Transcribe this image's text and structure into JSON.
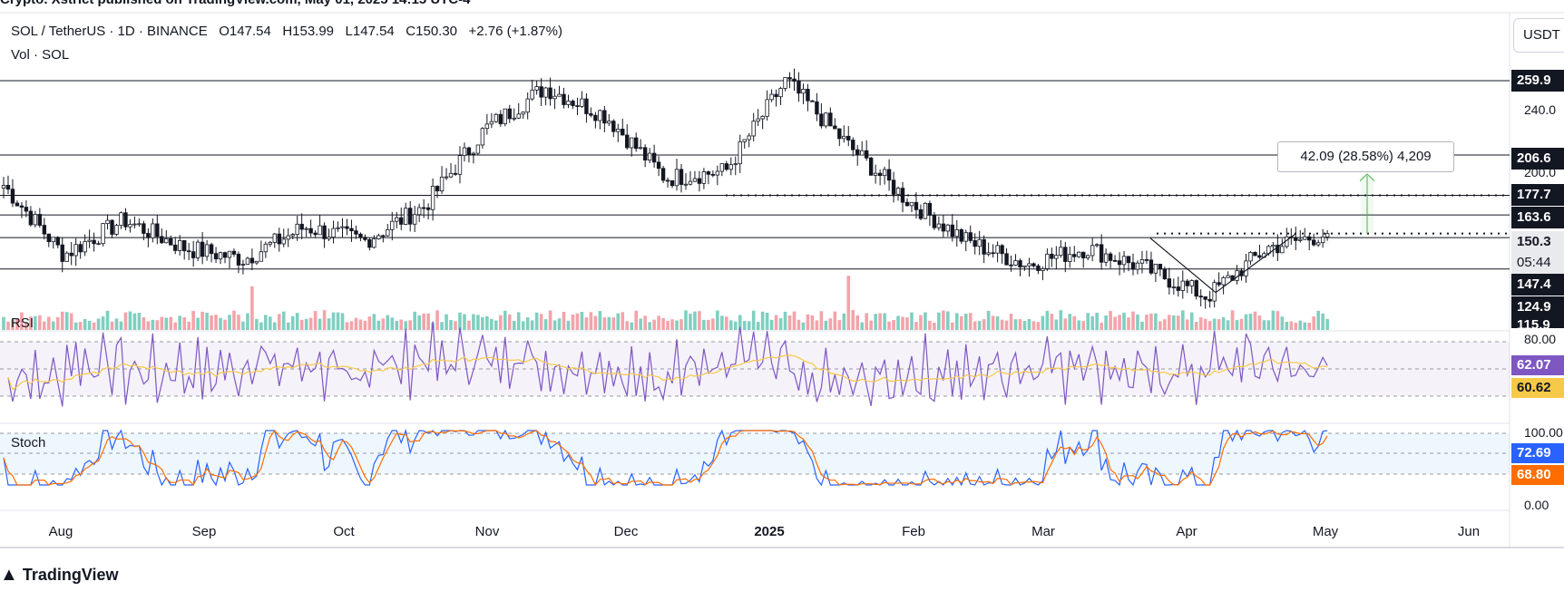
{
  "top_caption": "Crypto. Xstrict published on TradingView.com, May 01, 2025 14:15 UTC-4",
  "header": {
    "symbol": "SOL / TetherUS · 1D · BINANCE",
    "open": "O147.54",
    "high": "H153.99",
    "low": "L147.54",
    "close": "C150.30",
    "change": "+2.76 (+1.87%)",
    "volume_label": "Vol · SOL"
  },
  "currency_button": "USDT",
  "measure_label": "42.09 (28.58%) 4,209",
  "brand": "TradingView",
  "colors": {
    "up": "#089981",
    "down": "#f23645",
    "rsi": "#7e57c2",
    "rsi_ma": "#f7c948",
    "stoch_k": "#2962ff",
    "stoch_d": "#ff6d00",
    "measure": "#4caf50"
  },
  "price_axis": {
    "tags": [
      "259.9",
      "206.6",
      "177.7",
      "163.6",
      "150.3",
      "147.4",
      "124.9",
      "115.9"
    ],
    "countdown": "05:44",
    "labels": [
      "240.0",
      "200.0"
    ]
  },
  "indicators": {
    "rsi": {
      "title": "RSI",
      "value": "62.07",
      "ma_value": "60.62",
      "upper": "80.00"
    },
    "stoch": {
      "title": "Stoch",
      "k_value": "72.69",
      "d_value": "68.80",
      "upper": "100.00",
      "lower": "0.00"
    }
  },
  "x_axis": [
    "Aug",
    "Sep",
    "Oct",
    "Nov",
    "Dec",
    "2025",
    "Feb",
    "Mar",
    "Apr",
    "May",
    "Jun"
  ],
  "chart_data": {
    "type": "candlestick",
    "title": "SOL / TetherUS · 1D · BINANCE",
    "ohlc_last": {
      "open": 147.54,
      "high": 153.99,
      "low": 147.54,
      "close": 150.3
    },
    "horizontal_levels": [
      259.9,
      206.6,
      177.7,
      163.6,
      147.4,
      124.9
    ],
    "dotted_levels": [
      177.7,
      150.3
    ],
    "series_close_approx": [
      {
        "x": "Aug",
        "y": 185
      },
      {
        "x": "Aug-05",
        "y": 135
      },
      {
        "x": "Aug-10",
        "y": 160
      },
      {
        "x": "Sep",
        "y": 140
      },
      {
        "x": "Sep-07",
        "y": 132
      },
      {
        "x": "Oct",
        "y": 155
      },
      {
        "x": "Oct-15",
        "y": 145
      },
      {
        "x": "Nov",
        "y": 170
      },
      {
        "x": "Nov-15",
        "y": 225
      },
      {
        "x": "Nov-22",
        "y": 255
      },
      {
        "x": "Dec",
        "y": 235
      },
      {
        "x": "Dec-20",
        "y": 190
      },
      {
        "x": "2025",
        "y": 195
      },
      {
        "x": "Jan-19",
        "y": 260
      },
      {
        "x": "Feb",
        "y": 215
      },
      {
        "x": "Feb-20",
        "y": 175
      },
      {
        "x": "Mar",
        "y": 145
      },
      {
        "x": "Mar-15",
        "y": 128
      },
      {
        "x": "Mar-25",
        "y": 140
      },
      {
        "x": "Apr",
        "y": 125
      },
      {
        "x": "Apr-07",
        "y": 105
      },
      {
        "x": "Apr-20",
        "y": 140
      },
      {
        "x": "May",
        "y": 150.3
      }
    ]
  }
}
